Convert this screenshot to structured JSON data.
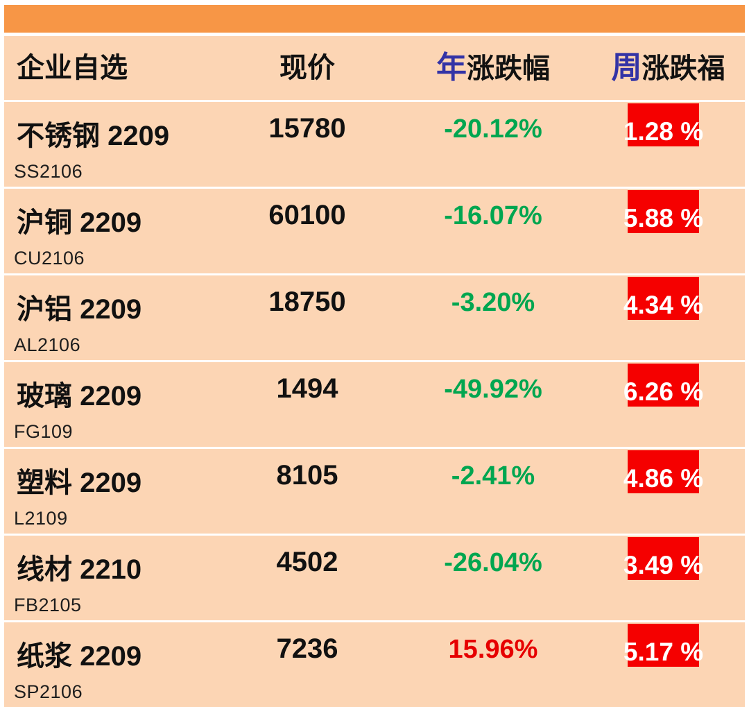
{
  "colors": {
    "top_bar": "#F79646",
    "row_bg": "#FCD5B4",
    "accent": "#3333A6",
    "green": "#00A650",
    "red_text": "#E60000",
    "badge_bg": "#F50000",
    "badge_text": "#FFFFFF"
  },
  "header": {
    "col_watchlist": "企业自选",
    "col_price": "现价",
    "col_year_prefix": "年",
    "col_year_rest": "涨跌幅",
    "col_week_prefix": "周",
    "col_week_rest": "涨跌福"
  },
  "rows": [
    {
      "name": "不锈钢 2209",
      "code": "SS2106",
      "price": "15780",
      "year_change": "-20.12%",
      "year_change_color": "#00A650",
      "week_change": "1.28 %"
    },
    {
      "name": "沪铜 2209",
      "code": "CU2106",
      "price": "60100",
      "year_change": "-16.07%",
      "year_change_color": "#00A650",
      "week_change": "5.88 %"
    },
    {
      "name": "沪铝 2209",
      "code": "AL2106",
      "price": "18750",
      "year_change": "-3.20%",
      "year_change_color": "#00A650",
      "week_change": "4.34 %"
    },
    {
      "name": "玻璃 2209",
      "code": "FG109",
      "price": "1494",
      "year_change": "-49.92%",
      "year_change_color": "#00A650",
      "week_change": "6.26 %"
    },
    {
      "name": "塑料 2209",
      "code": "L2109",
      "price": "8105",
      "year_change": "-2.41%",
      "year_change_color": "#00A650",
      "week_change": "4.86 %"
    },
    {
      "name": "线材 2210",
      "code": "FB2105",
      "price": "4502",
      "year_change": "-26.04%",
      "year_change_color": "#00A650",
      "week_change": "3.49 %"
    },
    {
      "name": "纸浆 2209",
      "code": "SP2106",
      "price": "7236",
      "year_change": "15.96%",
      "year_change_color": "#E60000",
      "week_change": "5.17 %"
    }
  ]
}
